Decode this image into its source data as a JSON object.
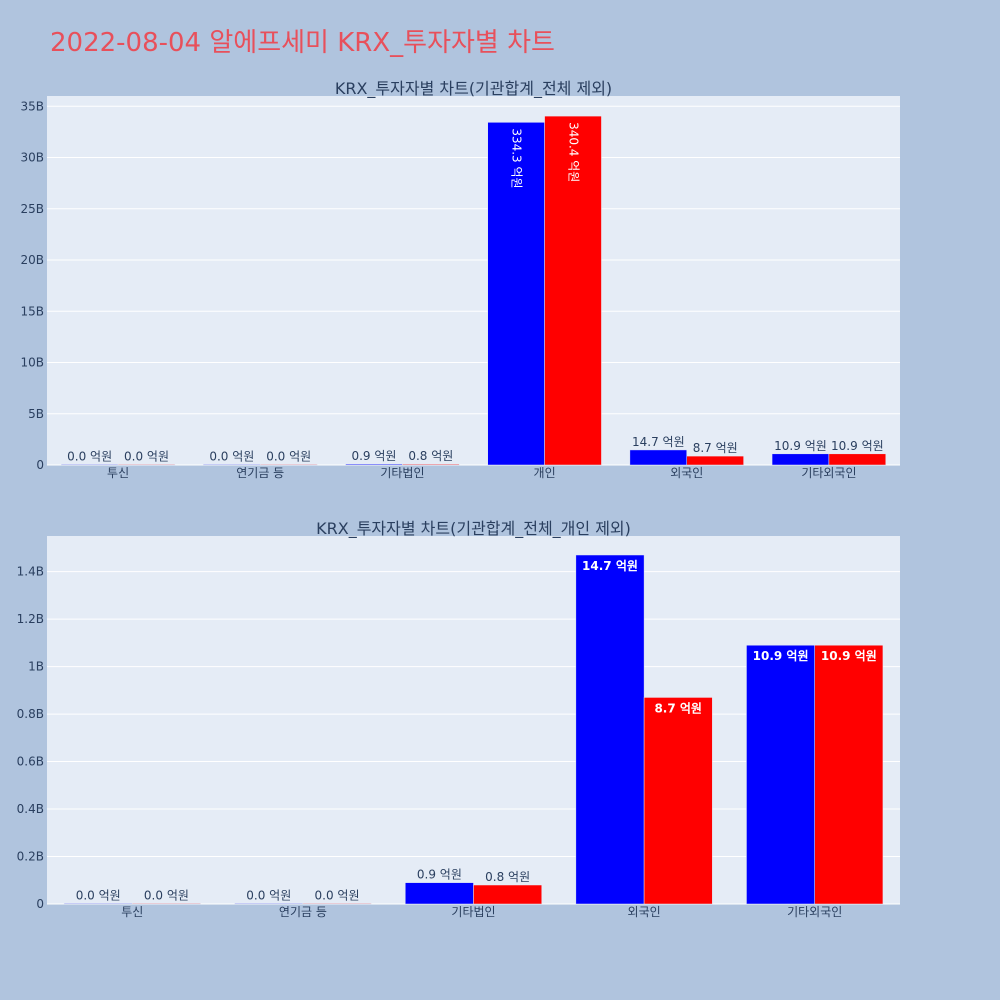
{
  "page": {
    "title": "2022-08-04 알에프세미 KRX_투자자별 차트"
  },
  "chart_data": [
    {
      "type": "bar",
      "title": "KRX_투자자별 차트(기관합계_전체 제외)",
      "categories": [
        "투신",
        "연기금 등",
        "기타법인",
        "개인",
        "외국인",
        "기타외국인"
      ],
      "series": [
        {
          "color": "#0000ff",
          "values": [
            0,
            0,
            90000000,
            33430000000,
            1470000000,
            1090000000
          ],
          "labels": [
            "0.0 억원",
            "0.0 억원",
            "0.9 억원",
            "334.3 억원",
            "14.7 억원",
            "10.9 억원"
          ]
        },
        {
          "color": "#ff0000",
          "values": [
            0,
            0,
            80000000,
            34040000000,
            870000000,
            1090000000
          ],
          "labels": [
            "0.0 억원",
            "0.0 억원",
            "0.8 억원",
            "340.4 억원",
            "8.7 억원",
            "10.9 억원"
          ]
        }
      ],
      "ylim": [
        0,
        36000000000
      ],
      "yticks": [
        0,
        5000000000,
        10000000000,
        15000000000,
        20000000000,
        25000000000,
        30000000000,
        35000000000
      ],
      "ytick_labels": [
        "0",
        "5B",
        "10B",
        "15B",
        "20B",
        "25B",
        "30B",
        "35B"
      ],
      "grid": true
    },
    {
      "type": "bar",
      "title": "KRX_투자자별 차트(기관합계_전체_개인 제외)",
      "categories": [
        "투신",
        "연기금 등",
        "기타법인",
        "외국인",
        "기타외국인"
      ],
      "series": [
        {
          "color": "#0000ff",
          "values": [
            0,
            0,
            90000000,
            1470000000,
            1090000000
          ],
          "labels": [
            "0.0 억원",
            "0.0 억원",
            "0.9 억원",
            "14.7 억원",
            "10.9 억원"
          ]
        },
        {
          "color": "#ff0000",
          "values": [
            0,
            0,
            80000000,
            870000000,
            1090000000
          ],
          "labels": [
            "0.0 억원",
            "0.0 억원",
            "0.8 억원",
            "8.7 억원",
            "10.9 억원"
          ]
        }
      ],
      "ylim": [
        0,
        1550000000
      ],
      "yticks": [
        0,
        200000000,
        400000000,
        600000000,
        800000000,
        1000000000,
        1200000000,
        1400000000
      ],
      "ytick_labels": [
        "0",
        "0.2B",
        "0.4B",
        "0.6B",
        "0.8B",
        "1B",
        "1.2B",
        "1.4B"
      ],
      "grid": true
    }
  ]
}
